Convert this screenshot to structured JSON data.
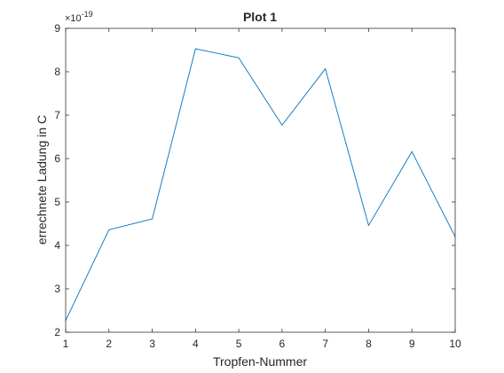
{
  "chart_data": {
    "type": "line",
    "title": "Plot 1",
    "xlabel": "Tropfen-Nummer",
    "ylabel": "errechnete Ladung in C",
    "exponent_label": "×10",
    "exponent_power": "-19",
    "x": [
      1,
      2,
      3,
      4,
      5,
      6,
      7,
      8,
      9,
      10
    ],
    "series": [
      {
        "values": [
          2.27,
          4.36,
          4.61,
          8.53,
          8.32,
          6.77,
          8.07,
          4.46,
          6.16,
          4.2
        ]
      }
    ],
    "xlim": [
      1,
      10
    ],
    "ylim": [
      2,
      9
    ],
    "xticks": [
      "1",
      "2",
      "3",
      "4",
      "5",
      "6",
      "7",
      "8",
      "9",
      "10"
    ],
    "yticks": [
      "2",
      "3",
      "4",
      "5",
      "6",
      "7",
      "8",
      "9"
    ],
    "grid": false,
    "line_color": "#0072BD"
  }
}
